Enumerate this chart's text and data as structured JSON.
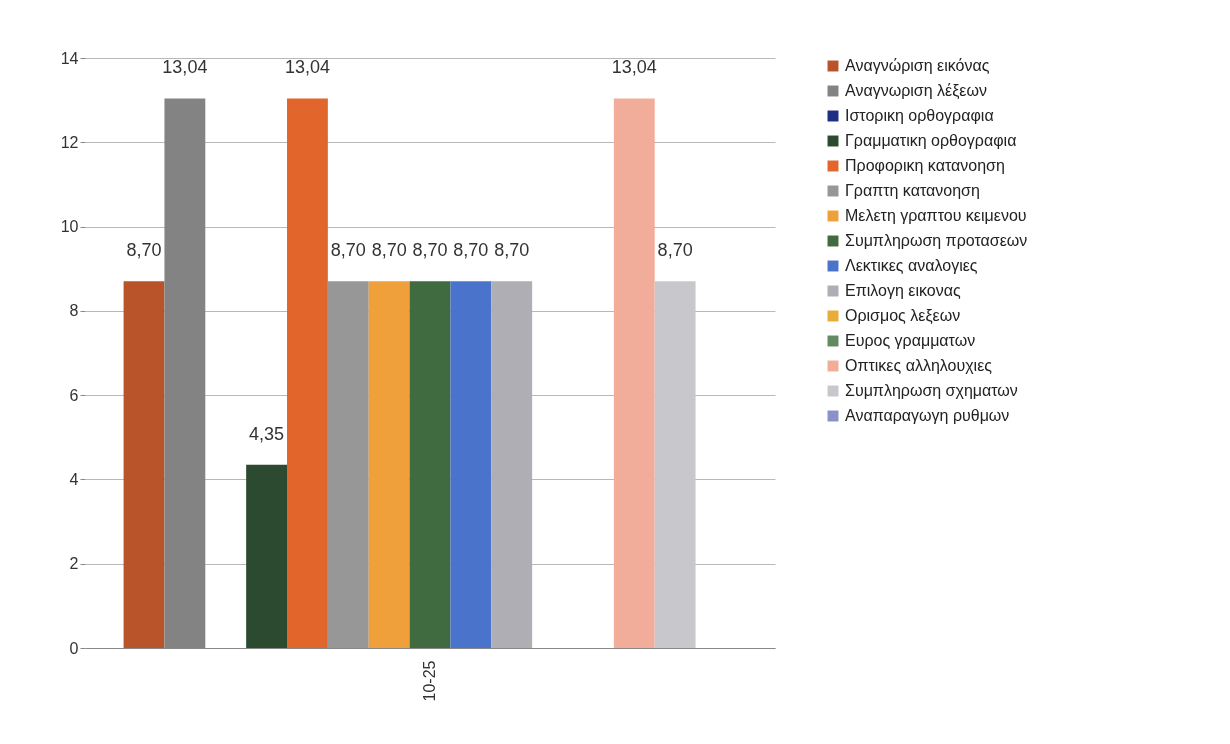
{
  "chart_data": {
    "type": "bar",
    "categories": [
      "10-25"
    ],
    "ylim": [
      0,
      14
    ],
    "yticks": [
      0,
      2,
      4,
      6,
      8,
      10,
      12,
      14
    ],
    "grid": "y",
    "legend": "right",
    "series": [
      {
        "name": "Αναγνώριση εικόνας",
        "color": "#b9542a",
        "values": [
          8.7
        ],
        "value_labels": [
          "8,70"
        ]
      },
      {
        "name": "Αναγνωριση λέξεων",
        "color": "#838383",
        "values": [
          13.04
        ],
        "value_labels": [
          "13,04"
        ]
      },
      {
        "name": "Ιστορικη ορθογραφια",
        "color": "#1f2f86",
        "values": [
          null
        ],
        "value_labels": [
          null
        ]
      },
      {
        "name": "Γραμματικη ορθογραφια",
        "color": "#2c4a30",
        "values": [
          4.35
        ],
        "value_labels": [
          "4,35"
        ]
      },
      {
        "name": "Προφορικη κατανοηση",
        "color": "#e2652c",
        "values": [
          13.04
        ],
        "value_labels": [
          "13,04"
        ]
      },
      {
        "name": "Γραπτη κατανοηση",
        "color": "#979797",
        "values": [
          8.7
        ],
        "value_labels": [
          "8,70"
        ]
      },
      {
        "name": "Μελετη γραπτου κειμενου",
        "color": "#f0a03a",
        "values": [
          8.7
        ],
        "value_labels": [
          "8,70"
        ]
      },
      {
        "name": "Συμπληρωση προτασεων",
        "color": "#406a40",
        "values": [
          8.7
        ],
        "value_labels": [
          "8,70"
        ]
      },
      {
        "name": "Λεκτικες αναλογιες",
        "color": "#4a74cc",
        "values": [
          8.7
        ],
        "value_labels": [
          "8,70"
        ]
      },
      {
        "name": "Επιλογη εικονας",
        "color": "#aeaeb4",
        "values": [
          8.7
        ],
        "value_labels": [
          "8,70"
        ]
      },
      {
        "name": "Ορισμος λεξεων",
        "color": "#e8ac38",
        "values": [
          null
        ],
        "value_labels": [
          null
        ]
      },
      {
        "name": "Ευρος γραμματων",
        "color": "#648a64",
        "values": [
          null
        ],
        "value_labels": [
          null
        ]
      },
      {
        "name": "Οπτικες αλληλουχιες",
        "color": "#f2ad9a",
        "values": [
          13.04
        ],
        "value_labels": [
          "13,04"
        ]
      },
      {
        "name": "Συμπληρωση σχηματων",
        "color": "#c8c8cc",
        "values": [
          8.7
        ],
        "value_labels": [
          "8,70"
        ]
      },
      {
        "name": "Αναπαραγωγη ρυθμων",
        "color": "#8a90c8",
        "values": [
          null
        ],
        "value_labels": [
          null
        ]
      }
    ]
  }
}
